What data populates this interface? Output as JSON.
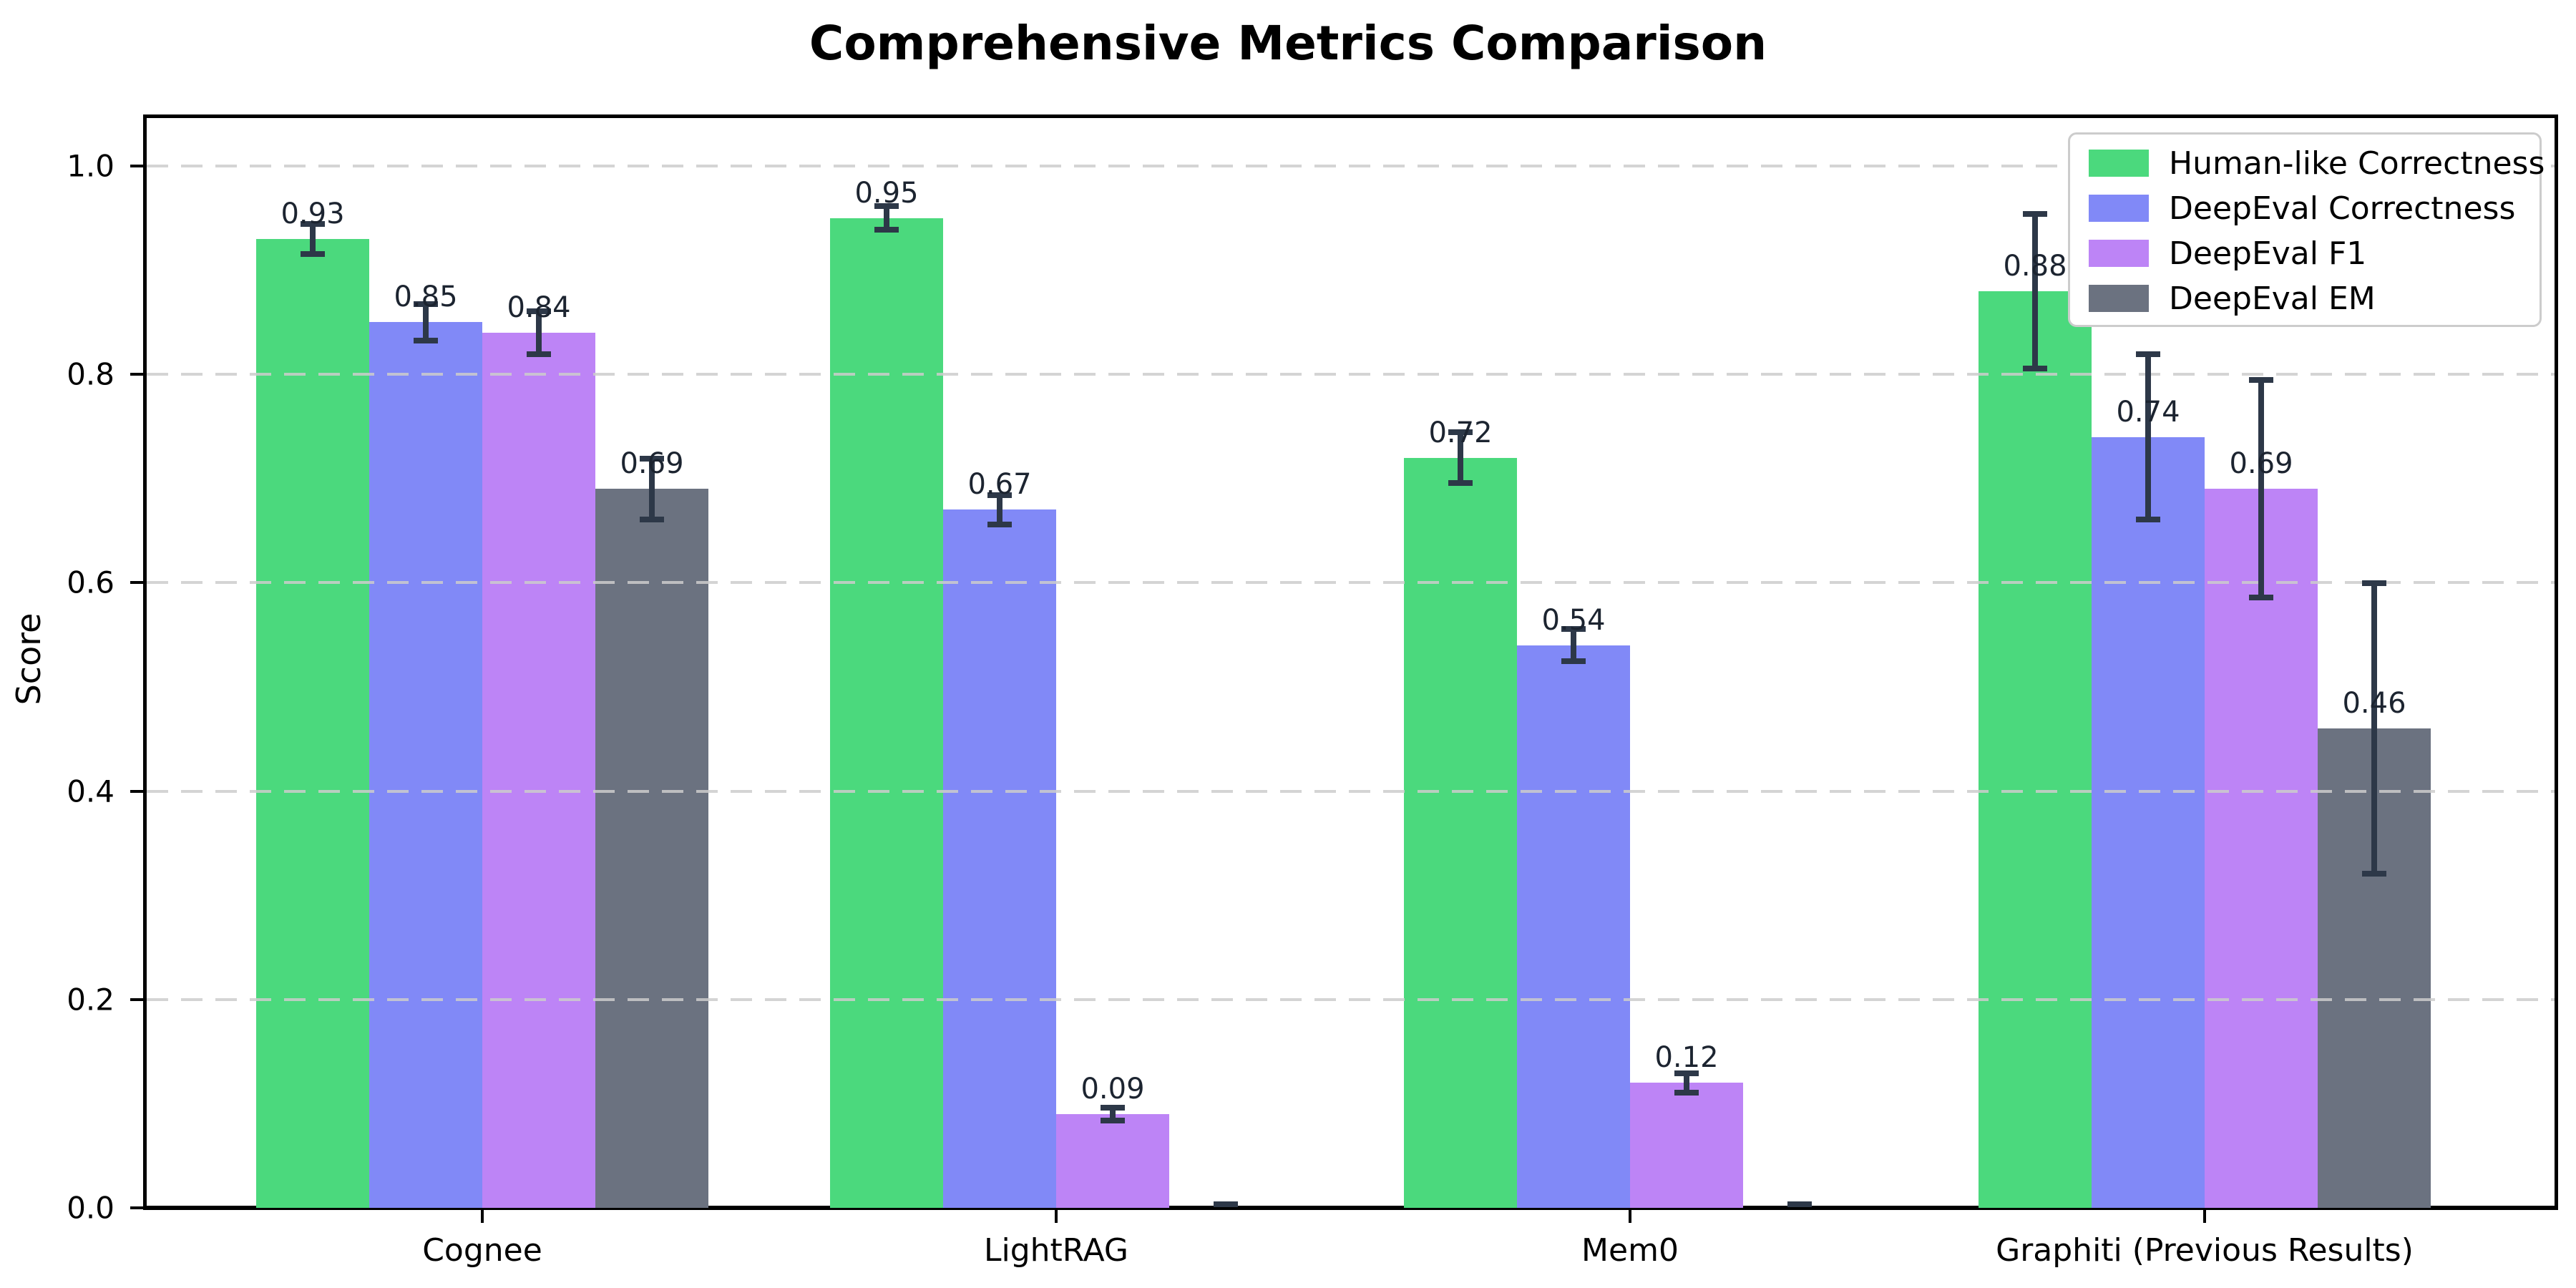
{
  "title": "Comprehensive Metrics Comparison",
  "chart_data": {
    "type": "bar",
    "title": "Comprehensive Metrics Comparison",
    "ylabel": "Score",
    "xlabel": "",
    "ylim": [
      0,
      1.05
    ],
    "yticks": [
      "0.0",
      "0.2",
      "0.4",
      "0.6",
      "0.8",
      "1.0"
    ],
    "grid": "horizontal dashed, drawn over bars",
    "legend_position": "upper right",
    "categories": [
      "Cognee",
      "LightRAG",
      "Mem0",
      "Graphiti (Previous Results)"
    ],
    "series": [
      {
        "name": "Human-like Correctness",
        "color": "#4bd97d",
        "values": [
          0.93,
          0.95,
          0.72,
          0.88
        ],
        "errors": [
          0.015,
          0.012,
          0.025,
          0.075
        ],
        "bar_labels": [
          "0.93",
          "0.95",
          "0.72",
          "0.88"
        ]
      },
      {
        "name": "DeepEval Correctness",
        "color": "#8189f7",
        "values": [
          0.85,
          0.67,
          0.54,
          0.74
        ],
        "errors": [
          0.018,
          0.015,
          0.016,
          0.08
        ],
        "bar_labels": [
          "0.85",
          "0.67",
          "0.54",
          "0.74"
        ]
      },
      {
        "name": "DeepEval F1",
        "color": "#bd84f6",
        "values": [
          0.84,
          0.09,
          0.12,
          0.69
        ],
        "errors": [
          0.021,
          0.007,
          0.01,
          0.105
        ],
        "bar_labels": [
          "0.84",
          "0.09",
          "0.12",
          "0.69"
        ]
      },
      {
        "name": "DeepEval EM",
        "color": "#6b7280",
        "values": [
          0.69,
          0.0,
          0.0,
          0.46
        ],
        "errors": [
          0.03,
          0.004,
          0.004,
          0.14
        ],
        "bar_labels": [
          "0.69",
          "",
          "",
          "0.46"
        ]
      }
    ],
    "error_bar_color": "#2d3848"
  }
}
